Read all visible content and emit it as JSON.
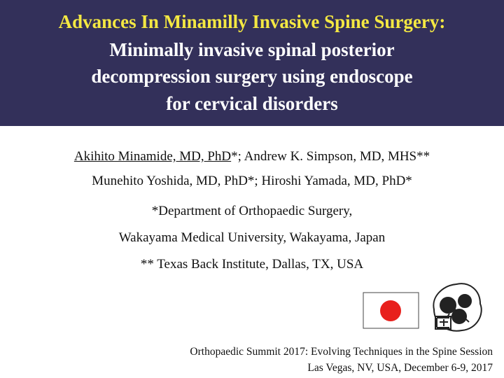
{
  "header": {
    "title": "Advances In Minamilly Invasive Spine Surgery:",
    "subtitle_lines": [
      "Minimally invasive spinal posterior",
      "decompression surgery using endoscope",
      "for cervical disorders"
    ]
  },
  "authors": {
    "line1": {
      "underlined": "Akihito Minamide, MD, PhD",
      "rest": "*; Andrew K. Simpson, MD, MHS**"
    },
    "line2": "Munehito Yoshida, MD, PhD*; Hiroshi Yamada, MD, PhD*"
  },
  "affiliations": [
    "*Department of Orthopaedic Surgery,",
    "Wakayama Medical University, Wakayama, Japan",
    "** Texas Back Institute, Dallas, TX, USA"
  ],
  "footer": [
    "Orthopaedic Summit 2017: Evolving Techniques in the Spine Session",
    "Las Vegas, NV, USA, December 6-9, 2017"
  ]
}
